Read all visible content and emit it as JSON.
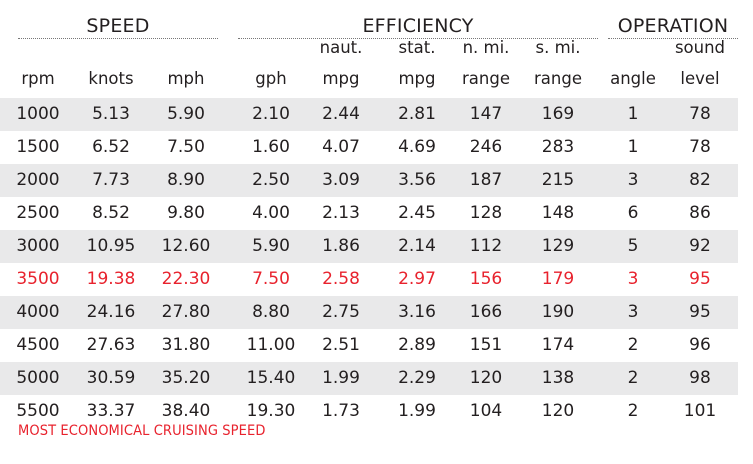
{
  "groups": {
    "speed": "SPEED",
    "efficiency": "EFFICIENCY",
    "operation": "OPERATION"
  },
  "columns": [
    {
      "line1": "",
      "line2": "rpm"
    },
    {
      "line1": "",
      "line2": "knots"
    },
    {
      "line1": "",
      "line2": "mph"
    },
    {
      "line1": "",
      "line2": "gph"
    },
    {
      "line1": "naut.",
      "line2": "mpg"
    },
    {
      "line1": "stat.",
      "line2": "mpg"
    },
    {
      "line1": "n. mi.",
      "line2": "range"
    },
    {
      "line1": "s. mi.",
      "line2": "range"
    },
    {
      "line1": "",
      "line2": "angle"
    },
    {
      "line1": "sound",
      "line2": "level"
    }
  ],
  "rows": [
    [
      "1000",
      "5.13",
      "5.90",
      "2.10",
      "2.44",
      "2.81",
      "147",
      "169",
      "1",
      "78"
    ],
    [
      "1500",
      "6.52",
      "7.50",
      "1.60",
      "4.07",
      "4.69",
      "246",
      "283",
      "1",
      "78"
    ],
    [
      "2000",
      "7.73",
      "8.90",
      "2.50",
      "3.09",
      "3.56",
      "187",
      "215",
      "3",
      "82"
    ],
    [
      "2500",
      "8.52",
      "9.80",
      "4.00",
      "2.13",
      "2.45",
      "128",
      "148",
      "6",
      "86"
    ],
    [
      "3000",
      "10.95",
      "12.60",
      "5.90",
      "1.86",
      "2.14",
      "112",
      "129",
      "5",
      "92"
    ],
    [
      "3500",
      "19.38",
      "22.30",
      "7.50",
      "2.58",
      "2.97",
      "156",
      "179",
      "3",
      "95"
    ],
    [
      "4000",
      "24.16",
      "27.80",
      "8.80",
      "2.75",
      "3.16",
      "166",
      "190",
      "3",
      "95"
    ],
    [
      "4500",
      "27.63",
      "31.80",
      "11.00",
      "2.51",
      "2.89",
      "151",
      "174",
      "2",
      "96"
    ],
    [
      "5000",
      "30.59",
      "35.20",
      "15.40",
      "1.99",
      "2.29",
      "120",
      "138",
      "2",
      "98"
    ],
    [
      "5500",
      "33.37",
      "38.40",
      "19.30",
      "1.73",
      "1.99",
      "104",
      "120",
      "2",
      "101"
    ]
  ],
  "highlight_row": 5,
  "footnote": "MOST ECONOMICAL CRUISING SPEED",
  "colors": {
    "highlight": "#e8222d",
    "shade": "#e9e9ea",
    "text": "#231f20"
  }
}
